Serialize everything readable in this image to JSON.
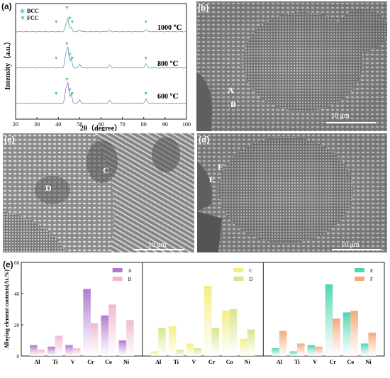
{
  "figure": {
    "panel_a_label": "(a)",
    "panel_b_label": "(b)",
    "panel_c_label": "(c)",
    "panel_d_label": "(d)",
    "panel_e_label": "(e)"
  },
  "xrd": {
    "legend": [
      {
        "symbol": "◆",
        "label": "BCC",
        "color": "#7ec8e3"
      },
      {
        "symbol": "▼",
        "label": "FCC",
        "color": "#5cc86e"
      }
    ],
    "ylabel": "Intensity（a.u.）",
    "xlabel": "2θ（degree）",
    "xticks": [
      "20",
      "30",
      "40",
      "50",
      "60",
      "70",
      "80",
      "90",
      "100"
    ],
    "traces": [
      {
        "label": "1000 ℃",
        "color": "#5f9ea0"
      },
      {
        "label": "800 ℃",
        "color": "#4aa3c8"
      },
      {
        "label": "600 ℃",
        "color": "#9b6fb0"
      }
    ]
  },
  "micrographs": {
    "b": {
      "scale": "10 μm",
      "markers": [
        "A",
        "B"
      ]
    },
    "c": {
      "scale": "10 μm",
      "markers": [
        "C",
        "D"
      ]
    },
    "d": {
      "scale": "10 μm",
      "markers": [
        "F",
        "E"
      ]
    }
  },
  "chart_data": {
    "type": "bar",
    "ylabel": "Alloying element contents(At.%)",
    "ylim": [
      0,
      60
    ],
    "yticks": [
      "0",
      "20",
      "40",
      "60"
    ],
    "categories": [
      "Al",
      "Ti",
      "V",
      "Cr",
      "Co",
      "Ni"
    ],
    "groups": [
      {
        "series": [
          {
            "name": "A",
            "color": "#b07ad0",
            "values": [
              7,
              6,
              7,
              43,
              26,
              10
            ]
          },
          {
            "name": "B",
            "color": "#f2b8cf",
            "values": [
              4,
              13,
              5,
              21,
              33,
              23
            ]
          }
        ]
      },
      {
        "series": [
          {
            "name": "C",
            "color": "#f3ee80",
            "values": [
              3,
              19,
              8,
              45,
              29,
              11
            ]
          },
          {
            "name": "D",
            "color": "#d3e68a",
            "values": [
              18,
              4,
              5,
              18,
              30,
              17
            ]
          }
        ]
      },
      {
        "series": [
          {
            "name": "E",
            "color": "#4fd6b0",
            "values": [
              5,
              3,
              7,
              46,
              28,
              8
            ]
          },
          {
            "name": "F",
            "color": "#f7a878",
            "values": [
              16,
              8,
              6,
              24,
              29,
              15
            ]
          }
        ]
      }
    ]
  }
}
